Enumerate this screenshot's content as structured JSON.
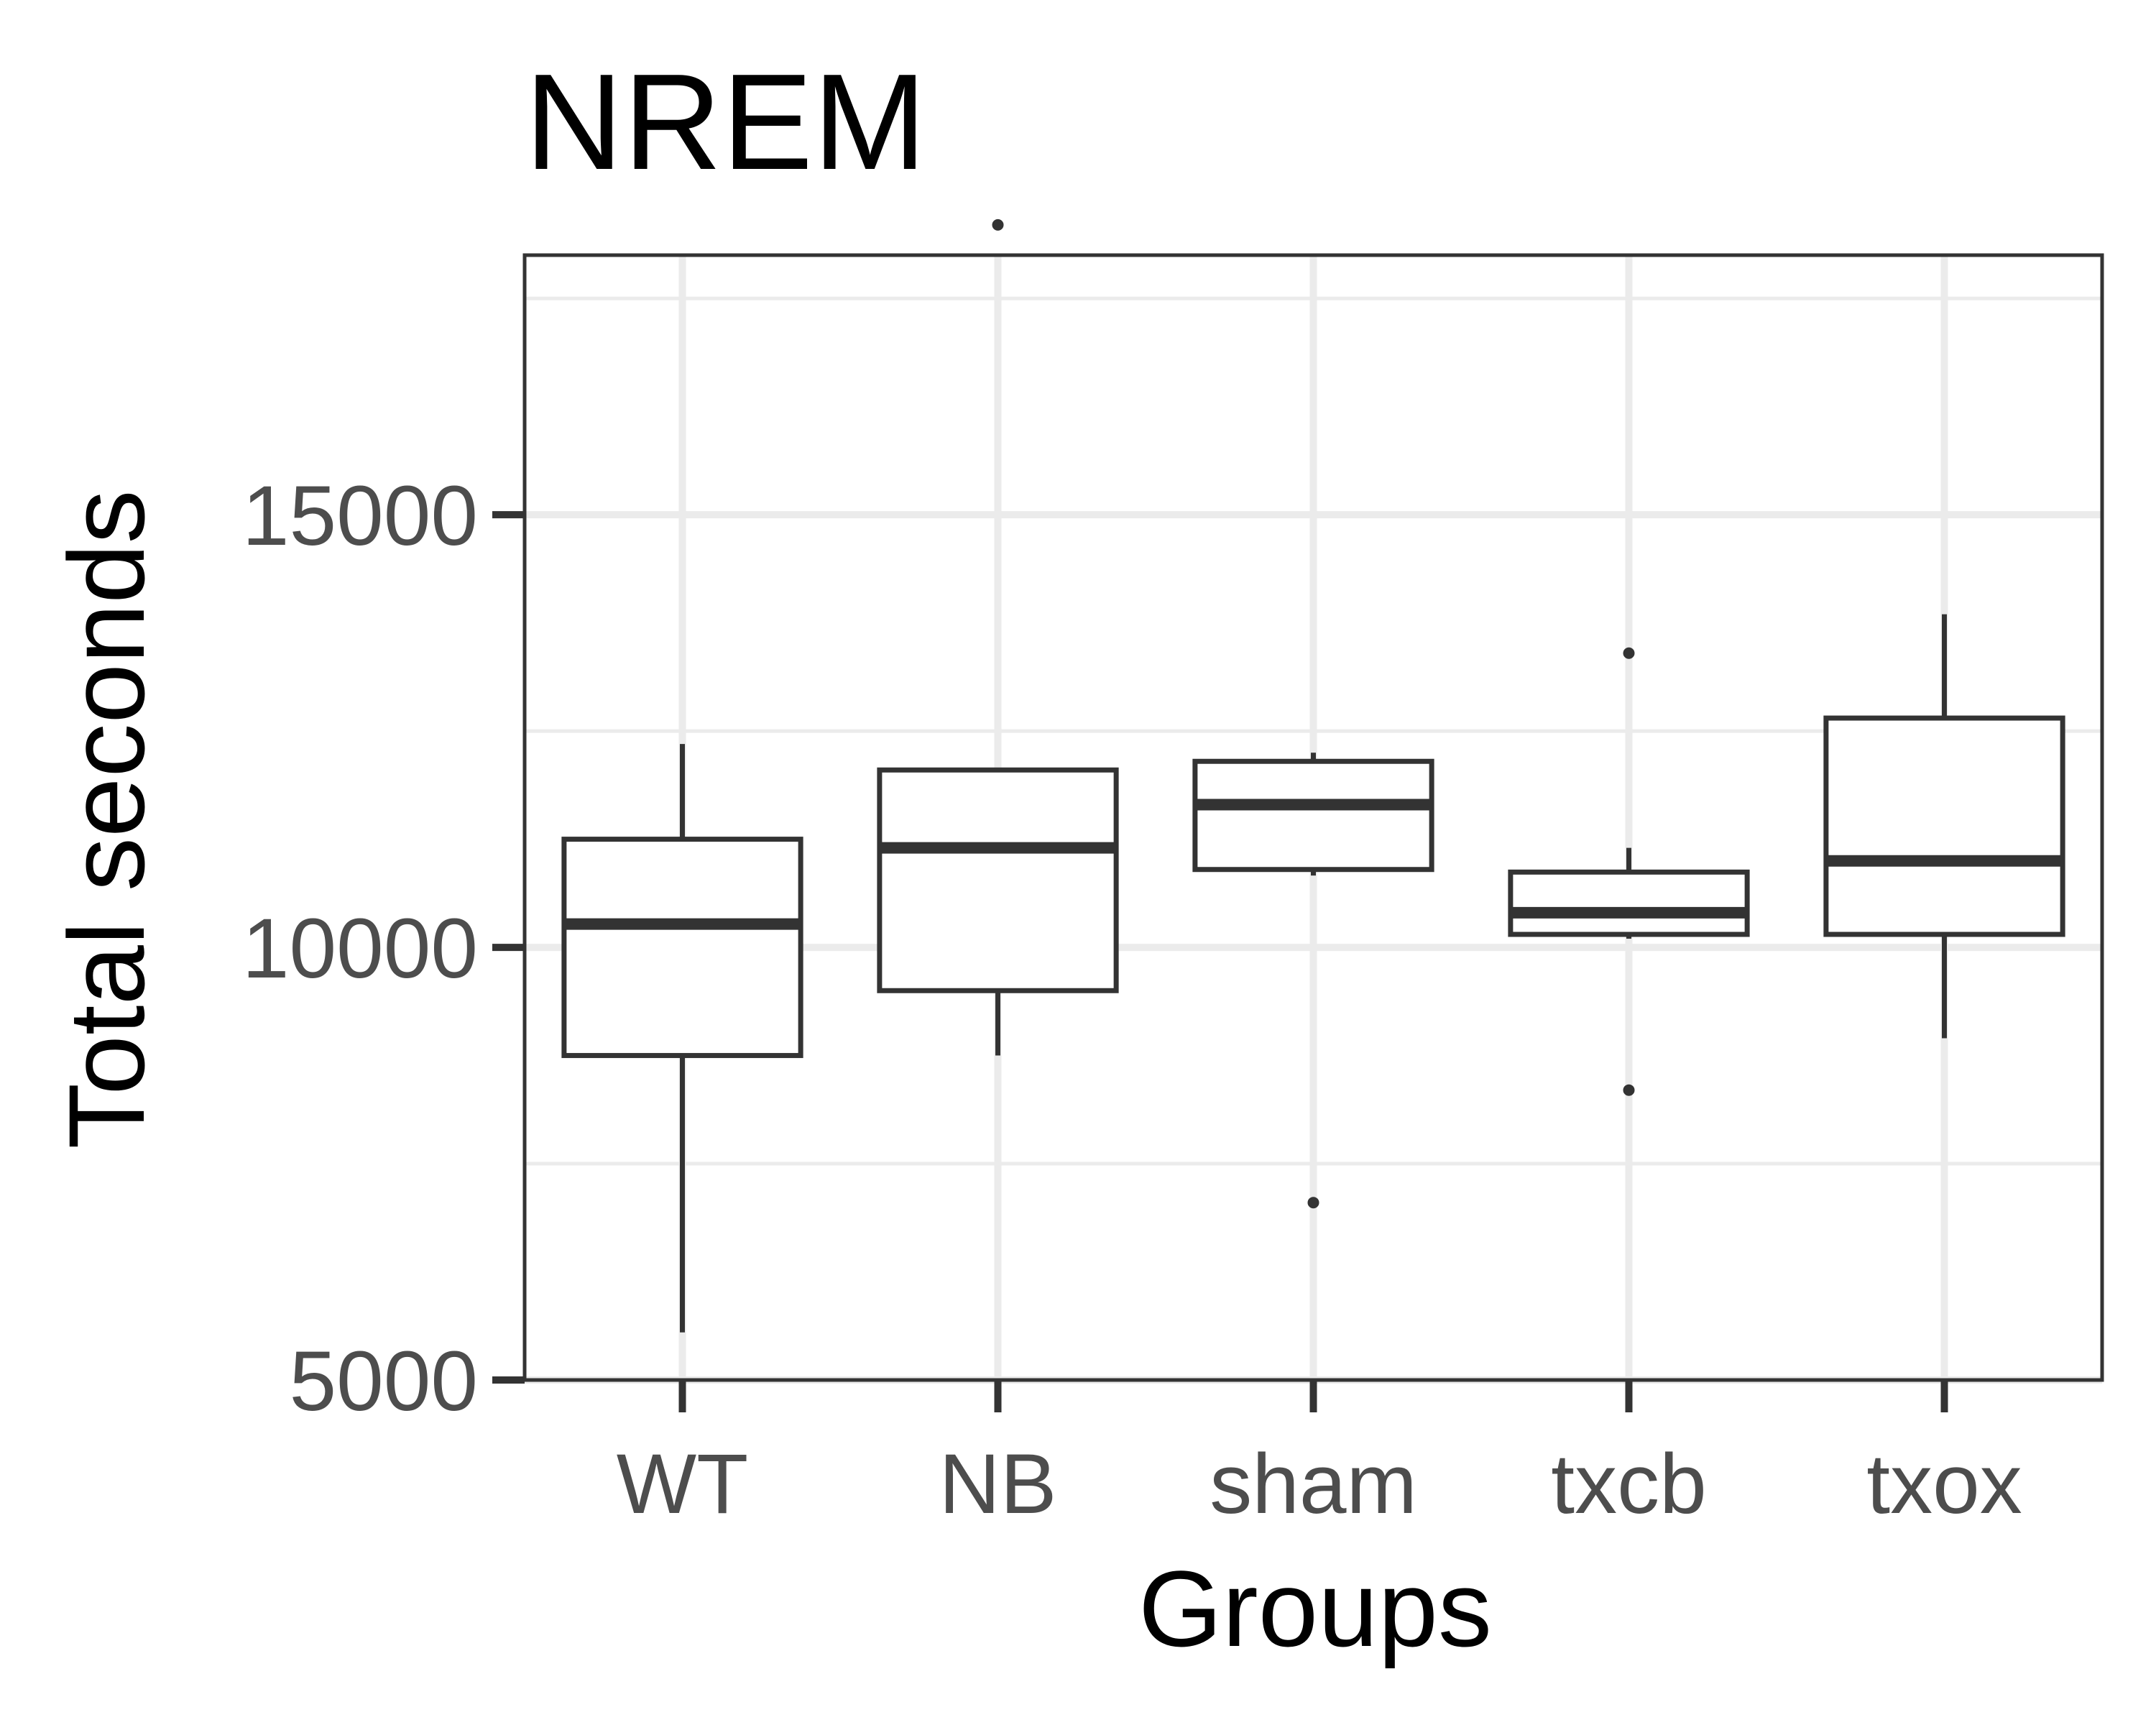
{
  "chart_data": {
    "type": "boxplot",
    "title": "NREM",
    "xlabel": "Groups",
    "ylabel": "Total seconds",
    "ylim": [
      5000,
      18000
    ],
    "yticks": [
      5000,
      10000,
      15000
    ],
    "grid": true,
    "categories": [
      "WT",
      "NB",
      "sham",
      "txcb",
      "txox"
    ],
    "boxes": [
      {
        "group": "WT",
        "whisker_low": 5550,
        "q1": 8750,
        "median": 10270,
        "q3": 11250,
        "whisker_high": 12350,
        "outliers": []
      },
      {
        "group": "NB",
        "whisker_low": 8750,
        "q1": 9500,
        "median": 11150,
        "q3": 12050,
        "whisker_high": 12050,
        "outliers": [
          18350
        ]
      },
      {
        "group": "sham",
        "whisker_low": 10830,
        "q1": 10900,
        "median": 11650,
        "q3": 12150,
        "whisker_high": 12250,
        "outliers": [
          7050
        ]
      },
      {
        "group": "txcb",
        "whisker_low": 10100,
        "q1": 10150,
        "median": 10400,
        "q3": 10870,
        "whisker_high": 11150,
        "outliers": [
          13400,
          8350
        ]
      },
      {
        "group": "txox",
        "whisker_low": 8950,
        "q1": 10150,
        "median": 11000,
        "q3": 12650,
        "whisker_high": 13850,
        "outliers": []
      }
    ],
    "colors": {
      "panel_bg": "#ffffff",
      "grid": "#ebebeb",
      "box_line": "#333333",
      "tick_text": "#4d4d4d",
      "title_text": "#000000"
    }
  }
}
